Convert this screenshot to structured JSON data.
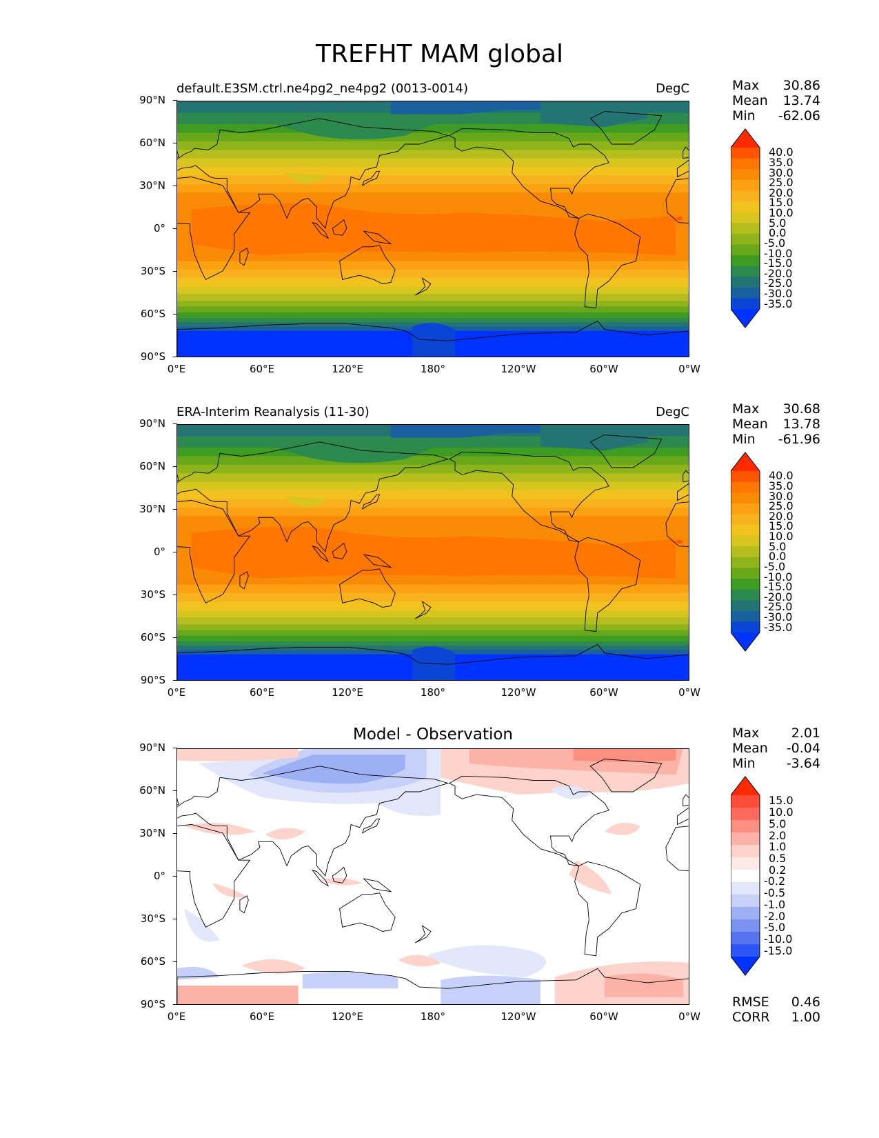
{
  "figure": {
    "title": "TREFHT MAM global"
  },
  "lat_ticks": [
    "90°N",
    "60°N",
    "30°N",
    "0°",
    "30°S",
    "60°S",
    "90°S"
  ],
  "lon_ticks": [
    "0°E",
    "60°E",
    "120°E",
    "180°",
    "120°W",
    "60°W",
    "0°W"
  ],
  "panels": [
    {
      "id": "model",
      "title_left": "default.E3SM.ctrl.ne4pg2_ne4pg2 (0013-0014)",
      "title_right": "DegC",
      "stats": {
        "max_label": "Max",
        "max": "30.86",
        "mean_label": "Mean",
        "mean": "13.74",
        "min_label": "Min",
        "min": "-62.06"
      },
      "colorbar": {
        "labels": [
          "40.0",
          "35.0",
          "30.0",
          "25.0",
          "20.0",
          "15.0",
          "10.0",
          "5.0",
          "0.0",
          "-5.0",
          "-10.0",
          "-15.0",
          "-20.0",
          "-25.0",
          "-30.0",
          "-35.0"
        ],
        "colors": [
          "#ff2a00",
          "#ff5500",
          "#ff7700",
          "#f98a06",
          "#fba112",
          "#f8b21e",
          "#f2c21f",
          "#d8c51f",
          "#b5be1d",
          "#8fb31b",
          "#68a81a",
          "#3f9c22",
          "#2c8a4e",
          "#247474",
          "#1a5f9e",
          "#0b45d6",
          "#0033ff"
        ]
      },
      "map": {
        "type": "temperature"
      }
    },
    {
      "id": "obs",
      "title_left": "ERA-Interim Reanalysis (11-30)",
      "title_right": "DegC",
      "stats": {
        "max_label": "Max",
        "max": "30.68",
        "mean_label": "Mean",
        "mean": "13.78",
        "min_label": "Min",
        "min": "-61.96"
      },
      "colorbar": {
        "labels": [
          "40.0",
          "35.0",
          "30.0",
          "25.0",
          "20.0",
          "15.0",
          "10.0",
          "5.0",
          "0.0",
          "-5.0",
          "-10.0",
          "-15.0",
          "-20.0",
          "-25.0",
          "-30.0",
          "-35.0"
        ],
        "colors": [
          "#ff2a00",
          "#ff5500",
          "#ff7700",
          "#f98a06",
          "#fba112",
          "#f8b21e",
          "#f2c21f",
          "#d8c51f",
          "#b5be1d",
          "#8fb31b",
          "#68a81a",
          "#3f9c22",
          "#2c8a4e",
          "#247474",
          "#1a5f9e",
          "#0b45d6",
          "#0033ff"
        ]
      },
      "map": {
        "type": "temperature"
      }
    },
    {
      "id": "diff",
      "title_center": "Model - Observation",
      "stats": {
        "max_label": "Max",
        "max": "2.01",
        "mean_label": "Mean",
        "mean": "-0.04",
        "min_label": "Min",
        "min": "-3.64"
      },
      "colorbar": {
        "labels": [
          "15.0",
          "10.0",
          "5.0",
          "2.0",
          "1.0",
          "0.5",
          "0.2",
          "-0.2",
          "-0.5",
          "-1.0",
          "-2.0",
          "-5.0",
          "-10.0",
          "-15.0"
        ],
        "colors": [
          "#ff2a00",
          "#ff4b3a",
          "#fd6a5c",
          "#fb9080",
          "#fcb2a6",
          "#fdd3cc",
          "#fde9e6",
          "#ffffff",
          "#e2e7fb",
          "#c6d0f8",
          "#9eb0f4",
          "#7a92f0",
          "#5573ee",
          "#2e55f5",
          "#0033ff"
        ]
      },
      "extra": {
        "rmse_label": "RMSE",
        "rmse": "0.46",
        "corr_label": "CORR",
        "corr": "1.00"
      },
      "map": {
        "type": "difference"
      }
    }
  ],
  "chart_data": [
    {
      "type": "heatmap",
      "title": "default.E3SM.ctrl.ne4pg2_ne4pg2 (0013-0014)",
      "units": "DegC",
      "xlim": [
        0,
        360
      ],
      "ylim": [
        -90,
        90
      ],
      "zonal_mean_profile": {
        "lat": [
          -90,
          -75,
          -60,
          -45,
          -30,
          -15,
          0,
          15,
          30,
          45,
          60,
          75,
          90
        ],
        "value": [
          -58,
          -40,
          -3,
          5,
          15,
          23,
          26,
          24,
          15,
          4,
          -8,
          -22,
          -30
        ]
      },
      "max": 30.86,
      "mean": 13.74,
      "min": -62.06,
      "levels": [
        -35,
        -30,
        -25,
        -20,
        -15,
        -10,
        -5,
        0,
        5,
        10,
        15,
        20,
        25,
        30,
        35,
        40
      ]
    },
    {
      "type": "heatmap",
      "title": "ERA-Interim Reanalysis (11-30)",
      "units": "DegC",
      "xlim": [
        0,
        360
      ],
      "ylim": [
        -90,
        90
      ],
      "zonal_mean_profile": {
        "lat": [
          -90,
          -75,
          -60,
          -45,
          -30,
          -15,
          0,
          15,
          30,
          45,
          60,
          75,
          90
        ],
        "value": [
          -58,
          -40,
          -3,
          5,
          15,
          23,
          26,
          24,
          15,
          4,
          -8,
          -22,
          -30
        ]
      },
      "max": 30.68,
      "mean": 13.78,
      "min": -61.96,
      "levels": [
        -35,
        -30,
        -25,
        -20,
        -15,
        -10,
        -5,
        0,
        5,
        10,
        15,
        20,
        25,
        30,
        35,
        40
      ]
    },
    {
      "type": "heatmap",
      "title": "Model - Observation",
      "xlim": [
        0,
        360
      ],
      "ylim": [
        -90,
        90
      ],
      "max": 2.01,
      "mean": -0.04,
      "min": -3.64,
      "rmse": 0.46,
      "corr": 1.0,
      "levels": [
        -15,
        -10,
        -5,
        -2,
        -1,
        -0.5,
        -0.2,
        0.2,
        0.5,
        1,
        2,
        5,
        10,
        15
      ]
    }
  ]
}
